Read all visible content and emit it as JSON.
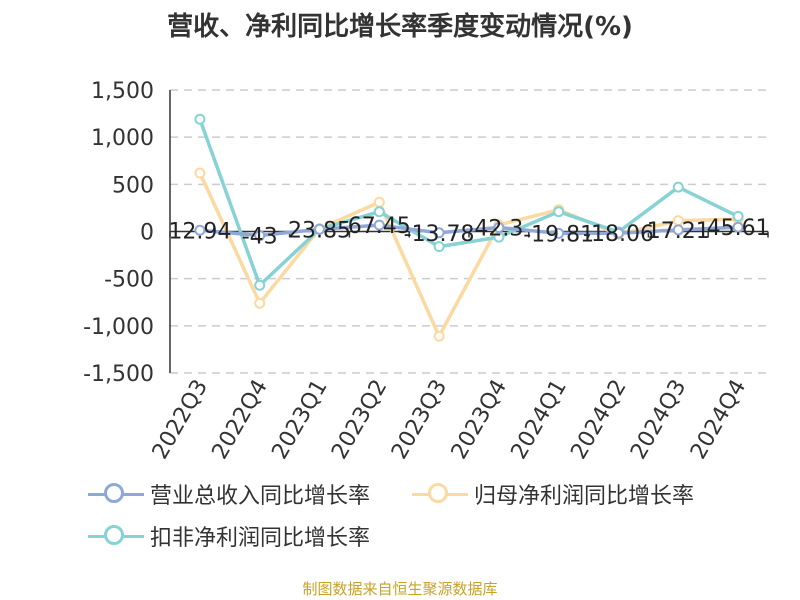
{
  "chart_data": {
    "type": "line",
    "title": "营收、净利同比增长率季度变动情况(%)",
    "categories": [
      "2022Q3",
      "2022Q4",
      "2023Q1",
      "2023Q2",
      "2023Q3",
      "2023Q4",
      "2024Q1",
      "2024Q2",
      "2024Q3",
      "2024Q4"
    ],
    "ylim": [
      -1500,
      1500
    ],
    "yticks": [
      "1,500",
      "1,000",
      "500",
      "0",
      "-500",
      "-1,000",
      "-1,500"
    ],
    "ytick_values": [
      1500,
      1000,
      500,
      0,
      -500,
      -1000,
      -1500
    ],
    "grid": true,
    "legend_position": "bottom",
    "series": [
      {
        "name": "营业总收入同比增长率",
        "color": "#8fa8d8",
        "values": [
          12.94,
          -43,
          23.85,
          67.45,
          -13.78,
          42.3,
          -19.81,
          -18.06,
          17.21,
          45.61
        ],
        "labels": [
          "12.94",
          "-43",
          "23.85",
          "67.45",
          "-13.78",
          "42.3",
          "-19.81",
          "-18.06",
          "17.21",
          "45.61"
        ]
      },
      {
        "name": "归母净利润同比增长率",
        "color": "#fcd9a0",
        "values": [
          620,
          -760,
          30,
          310,
          -1110,
          70,
          230,
          -30,
          115,
          130
        ]
      },
      {
        "name": "扣非净利润同比增长率",
        "color": "#86d2d5",
        "values": [
          1190,
          -570,
          25,
          210,
          -160,
          -60,
          210,
          -5,
          470,
          160
        ]
      }
    ]
  },
  "footer": {
    "source": "制图数据来自恒生聚源数据库"
  }
}
